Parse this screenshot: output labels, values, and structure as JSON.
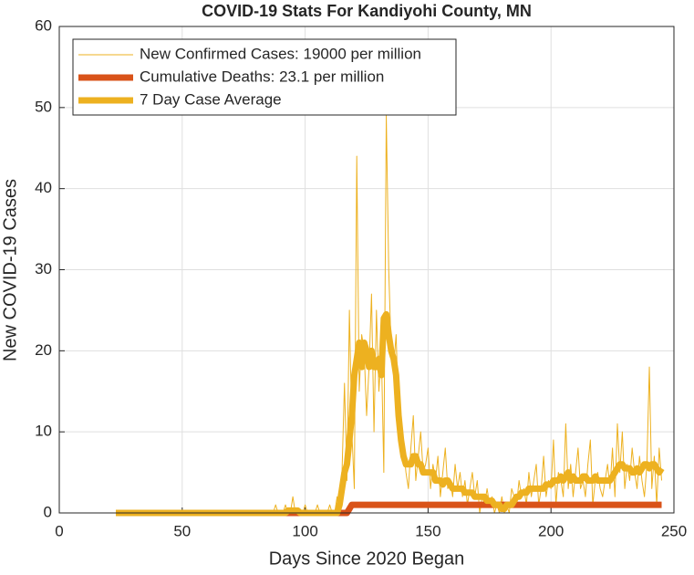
{
  "chart_data": {
    "type": "line",
    "title": "COVID-19 Stats For Kandiyohi County, MN",
    "x_label": "Days Since 2020 Began",
    "y_label": "New COVID-19 Cases",
    "xlim": [
      0,
      250
    ],
    "xticks": [
      0,
      50,
      100,
      150,
      200,
      250
    ],
    "ylim": [
      0,
      60
    ],
    "yticks": [
      0,
      10,
      20,
      30,
      40,
      50,
      60
    ],
    "grid": true,
    "legend": "northwest",
    "x": [
      23,
      24,
      25,
      26,
      27,
      28,
      29,
      30,
      31,
      32,
      33,
      34,
      35,
      36,
      37,
      38,
      39,
      40,
      41,
      42,
      43,
      44,
      45,
      46,
      47,
      48,
      49,
      50,
      51,
      52,
      53,
      54,
      55,
      56,
      57,
      58,
      59,
      60,
      61,
      62,
      63,
      64,
      65,
      66,
      67,
      68,
      69,
      70,
      71,
      72,
      73,
      74,
      75,
      76,
      77,
      78,
      79,
      80,
      81,
      82,
      83,
      84,
      85,
      86,
      87,
      88,
      89,
      90,
      91,
      92,
      93,
      94,
      95,
      96,
      97,
      98,
      99,
      100,
      101,
      102,
      103,
      104,
      105,
      106,
      107,
      108,
      109,
      110,
      111,
      112,
      113,
      114,
      115,
      116,
      117,
      118,
      119,
      120,
      121,
      122,
      123,
      124,
      125,
      126,
      127,
      128,
      129,
      130,
      131,
      132,
      133,
      134,
      135,
      136,
      137,
      138,
      139,
      140,
      141,
      142,
      143,
      144,
      145,
      146,
      147,
      148,
      149,
      150,
      151,
      152,
      153,
      154,
      155,
      156,
      157,
      158,
      159,
      160,
      161,
      162,
      163,
      164,
      165,
      166,
      167,
      168,
      169,
      170,
      171,
      172,
      173,
      174,
      175,
      176,
      177,
      178,
      179,
      180,
      181,
      182,
      183,
      184,
      185,
      186,
      187,
      188,
      189,
      190,
      191,
      192,
      193,
      194,
      195,
      196,
      197,
      198,
      199,
      200,
      201,
      202,
      203,
      204,
      205,
      206,
      207,
      208,
      209,
      210,
      211,
      212,
      213,
      214,
      215,
      216,
      217,
      218,
      219,
      220,
      221,
      222,
      223,
      224,
      225,
      226,
      227,
      228,
      229,
      230,
      231,
      232,
      233,
      234,
      235,
      236,
      237,
      238,
      239,
      240,
      241,
      242,
      243,
      244,
      245
    ],
    "series": [
      {
        "name": "New Confirmed Cases: 19000 per million",
        "color": "#EDB120",
        "width": 1,
        "values": [
          0,
          0,
          0,
          0,
          0,
          0,
          0,
          0,
          0,
          0,
          0,
          0,
          0,
          0,
          0,
          0,
          0,
          0,
          0,
          0,
          0,
          0,
          0,
          0,
          0,
          0,
          0,
          0,
          0,
          0,
          0,
          0,
          0,
          0,
          0,
          0,
          0,
          0,
          0,
          0,
          0,
          0,
          0,
          0,
          0,
          0,
          0,
          0,
          0,
          0,
          0,
          0,
          0,
          0,
          0,
          0,
          0,
          0,
          0,
          0,
          0,
          0,
          0,
          0,
          0,
          1,
          0,
          0,
          0,
          1,
          0,
          0,
          2,
          0,
          0,
          0,
          0,
          1,
          0,
          0,
          0,
          0,
          1,
          0,
          0,
          0,
          0,
          1,
          0,
          0,
          2,
          0,
          5,
          16,
          4,
          25,
          10,
          3,
          44,
          15,
          22,
          20,
          12,
          18,
          27,
          10,
          25,
          15,
          20,
          5,
          49,
          30,
          20,
          18,
          22,
          12,
          10,
          8,
          5,
          3,
          8,
          12,
          4,
          7,
          10,
          5,
          6,
          8,
          3,
          6,
          4,
          7,
          2,
          5,
          8,
          3,
          4,
          2,
          6,
          3,
          5,
          2,
          4,
          1,
          3,
          5,
          2,
          4,
          0,
          2,
          1,
          3,
          1,
          2,
          0,
          1,
          0,
          2,
          0,
          1,
          0,
          3,
          2,
          1,
          4,
          2,
          3,
          1,
          5,
          2,
          4,
          6,
          1,
          3,
          7,
          2,
          4,
          3,
          9,
          1,
          5,
          4,
          2,
          11,
          3,
          6,
          2,
          5,
          8,
          3,
          4,
          2,
          6,
          9,
          1,
          4,
          5,
          3,
          2,
          4,
          6,
          3,
          8,
          2,
          11,
          5,
          10,
          3,
          6,
          4,
          8,
          5,
          3,
          7,
          4,
          2,
          6,
          18,
          3,
          7,
          1,
          8,
          4
        ]
      },
      {
        "name": "Cumulative Deaths: 23.1 per million",
        "color": "#D95319",
        "width": 7,
        "values": [
          0,
          0,
          0,
          0,
          0,
          0,
          0,
          0,
          0,
          0,
          0,
          0,
          0,
          0,
          0,
          0,
          0,
          0,
          0,
          0,
          0,
          0,
          0,
          0,
          0,
          0,
          0,
          0,
          0,
          0,
          0,
          0,
          0,
          0,
          0,
          0,
          0,
          0,
          0,
          0,
          0,
          0,
          0,
          0,
          0,
          0,
          0,
          0,
          0,
          0,
          0,
          0,
          0,
          0,
          0,
          0,
          0,
          0,
          0,
          0,
          0,
          0,
          0,
          0,
          0,
          0,
          0,
          0,
          0,
          0,
          0,
          0,
          0,
          0,
          0,
          0,
          0,
          0,
          0,
          0,
          0,
          0,
          0,
          0,
          0,
          0,
          0,
          0,
          0,
          0,
          0,
          0,
          0,
          0,
          0,
          0.5,
          1,
          1,
          1,
          1,
          1,
          1,
          1,
          1,
          1,
          1,
          1,
          1,
          1,
          1,
          1,
          1,
          1,
          1,
          1,
          1,
          1,
          1,
          1,
          1,
          1,
          1,
          1,
          1,
          1,
          1,
          1,
          1,
          1,
          1,
          1,
          1,
          1,
          1,
          1,
          1,
          1,
          1,
          1,
          1,
          1,
          1,
          1,
          1,
          1,
          1,
          1,
          1,
          1,
          1,
          1,
          1,
          1,
          1,
          1,
          1,
          1,
          1,
          1,
          1,
          1,
          1,
          1,
          1,
          1,
          1,
          1,
          1,
          1,
          1,
          1,
          1,
          1,
          1,
          1,
          1,
          1,
          1,
          1,
          1,
          1,
          1,
          1,
          1,
          1,
          1,
          1,
          1,
          1,
          1,
          1,
          1,
          1,
          1,
          1,
          1,
          1,
          1,
          1,
          1,
          1,
          1,
          1,
          1,
          1,
          1,
          1,
          1,
          1,
          1,
          1,
          1,
          1,
          1,
          1,
          1,
          1,
          1,
          1,
          1,
          1,
          1,
          1
        ]
      },
      {
        "name": "7 Day Case Average",
        "color": "#EDB120",
        "width": 7,
        "values": [
          0,
          0,
          0,
          0,
          0,
          0,
          0,
          0,
          0,
          0,
          0,
          0,
          0,
          0,
          0,
          0,
          0,
          0,
          0,
          0,
          0,
          0,
          0,
          0,
          0,
          0,
          0,
          0,
          0,
          0,
          0,
          0,
          0,
          0,
          0,
          0,
          0,
          0,
          0,
          0,
          0,
          0,
          0,
          0,
          0,
          0,
          0,
          0,
          0,
          0,
          0,
          0,
          0,
          0,
          0,
          0,
          0,
          0,
          0,
          0,
          0,
          0,
          0,
          0,
          0,
          0,
          0,
          0,
          0,
          0,
          0.3,
          0.3,
          0.3,
          0.3,
          0.3,
          0,
          0,
          0,
          0,
          0,
          0,
          0,
          0,
          0,
          0,
          0,
          0,
          0,
          0,
          0,
          0,
          1,
          3,
          5,
          6,
          9,
          12,
          17,
          19,
          21,
          18,
          21,
          20,
          18,
          20,
          18,
          18,
          19,
          17,
          24,
          24.5,
          22,
          20,
          19,
          17,
          12,
          9,
          7,
          6,
          6,
          6,
          7,
          7,
          6,
          6,
          5,
          5,
          5,
          5,
          5,
          4,
          4,
          4,
          3.5,
          4,
          4,
          3.5,
          3,
          3,
          3,
          3,
          3,
          2.5,
          2.5,
          2.5,
          2.5,
          2,
          2,
          2,
          2,
          2,
          1.5,
          1.5,
          1.5,
          1,
          1,
          1,
          0.5,
          0.5,
          1,
          1,
          1,
          1.5,
          2,
          2,
          2.5,
          2.5,
          2.5,
          3,
          3,
          3,
          3,
          3,
          3,
          3,
          3.5,
          3.5,
          3.5,
          4,
          4,
          4,
          4.5,
          4,
          4.5,
          5,
          4,
          4.5,
          4,
          4,
          4,
          4.5,
          4.5,
          4,
          4,
          4,
          4.5,
          4,
          4,
          4,
          4,
          4,
          4,
          4.5,
          5,
          5.5,
          6,
          6,
          5.5,
          5.5,
          5.5,
          5,
          5,
          5.5,
          5,
          5.5,
          6,
          6,
          5.5,
          6,
          6,
          5.5,
          5,
          5.5
        ]
      }
    ]
  }
}
